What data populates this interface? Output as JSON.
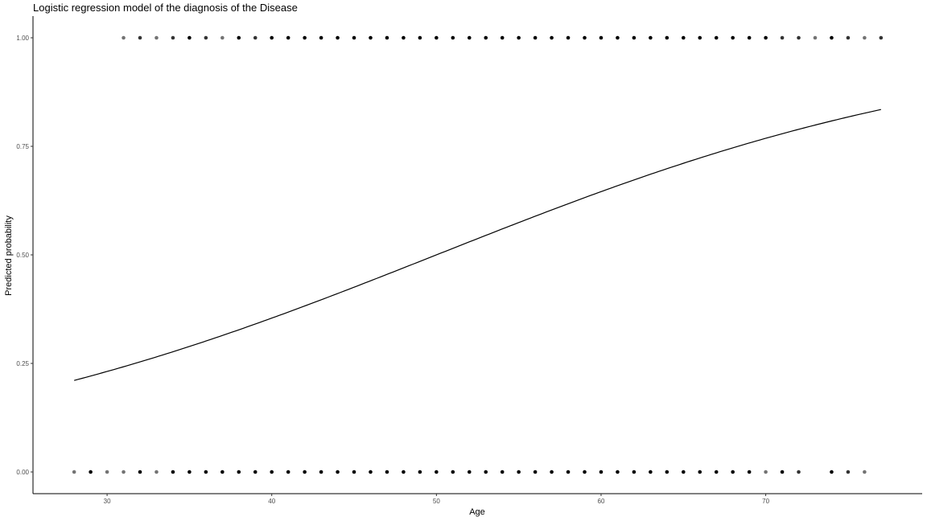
{
  "chart_data": {
    "type": "scatter",
    "title": "Logistic regression model of the diagnosis of the Disease",
    "xlabel": "Age",
    "ylabel": "Predicted probability",
    "xlim": [
      25.5,
      79.5
    ],
    "ylim": [
      -0.05,
      1.05
    ],
    "xticks": [
      30,
      40,
      50,
      60,
      70
    ],
    "xtick_labels": [
      "30",
      "40",
      "50",
      "60",
      "70"
    ],
    "yticks": [
      0,
      0.25,
      0.5,
      0.75,
      1
    ],
    "ytick_labels": [
      "0.00",
      "0.25",
      "0.50",
      "0.75",
      "1.00"
    ],
    "grid": false,
    "series": [
      {
        "kind": "points",
        "color": "#000000",
        "points_y1": [
          [
            31,
            0.55
          ],
          [
            32,
            0.8
          ],
          [
            33,
            0.55
          ],
          [
            34,
            0.8
          ],
          [
            35,
            1
          ],
          [
            36,
            0.8
          ],
          [
            37,
            0.55
          ],
          [
            38,
            1
          ],
          [
            39,
            0.8
          ],
          [
            40,
            1
          ],
          [
            41,
            1
          ],
          [
            42,
            1
          ],
          [
            43,
            1
          ],
          [
            44,
            1
          ],
          [
            45,
            1
          ],
          [
            46,
            1
          ],
          [
            47,
            1
          ],
          [
            48,
            1
          ],
          [
            49,
            1
          ],
          [
            50,
            1
          ],
          [
            51,
            1
          ],
          [
            52,
            1
          ],
          [
            53,
            1
          ],
          [
            54,
            1
          ],
          [
            55,
            1
          ],
          [
            56,
            1
          ],
          [
            57,
            1
          ],
          [
            58,
            1
          ],
          [
            59,
            1
          ],
          [
            60,
            1
          ],
          [
            61,
            1
          ],
          [
            62,
            1
          ],
          [
            63,
            1
          ],
          [
            64,
            1
          ],
          [
            65,
            1
          ],
          [
            66,
            1
          ],
          [
            67,
            1
          ],
          [
            68,
            1
          ],
          [
            69,
            1
          ],
          [
            70,
            1
          ],
          [
            71,
            0.8
          ],
          [
            72,
            0.8
          ],
          [
            73,
            0.55
          ],
          [
            74,
            1
          ],
          [
            75,
            0.8
          ],
          [
            76,
            0.55
          ],
          [
            77,
            0.8
          ]
        ],
        "points_y0": [
          [
            28,
            0.55
          ],
          [
            29,
            1
          ],
          [
            30,
            0.55
          ],
          [
            31,
            0.55
          ],
          [
            32,
            1
          ],
          [
            33,
            0.55
          ],
          [
            34,
            1
          ],
          [
            35,
            1
          ],
          [
            36,
            1
          ],
          [
            37,
            1
          ],
          [
            38,
            1
          ],
          [
            39,
            1
          ],
          [
            40,
            1
          ],
          [
            41,
            1
          ],
          [
            42,
            1
          ],
          [
            43,
            1
          ],
          [
            44,
            1
          ],
          [
            45,
            1
          ],
          [
            46,
            1
          ],
          [
            47,
            1
          ],
          [
            48,
            1
          ],
          [
            49,
            1
          ],
          [
            50,
            1
          ],
          [
            51,
            1
          ],
          [
            52,
            1
          ],
          [
            53,
            1
          ],
          [
            54,
            1
          ],
          [
            55,
            1
          ],
          [
            56,
            1
          ],
          [
            57,
            1
          ],
          [
            58,
            1
          ],
          [
            59,
            1
          ],
          [
            60,
            1
          ],
          [
            61,
            1
          ],
          [
            62,
            1
          ],
          [
            63,
            1
          ],
          [
            64,
            1
          ],
          [
            65,
            1
          ],
          [
            66,
            1
          ],
          [
            67,
            1
          ],
          [
            68,
            1
          ],
          [
            69,
            1
          ],
          [
            70,
            0.55
          ],
          [
            71,
            1
          ],
          [
            72,
            0.8
          ],
          [
            74,
            1
          ],
          [
            75,
            0.8
          ],
          [
            76,
            0.55
          ]
        ]
      },
      {
        "kind": "logistic-curve",
        "color": "#000000",
        "x_range": [
          28,
          77
        ],
        "intercept": -3.0,
        "slope": 0.06
      }
    ]
  }
}
